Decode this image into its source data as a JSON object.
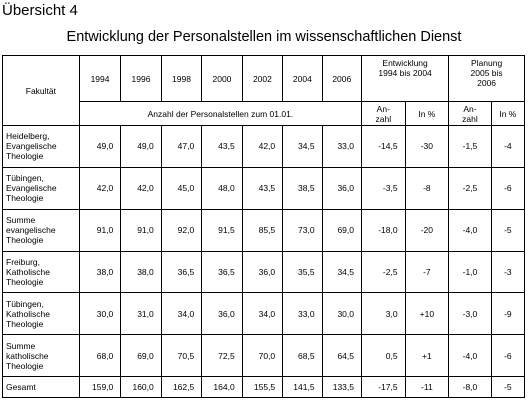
{
  "document": {
    "label": "Übersicht 4",
    "title": "Entwicklung der Personalstellen im wissenschaftlichen Dienst"
  },
  "table": {
    "headers": {
      "faculty": "Fakultät",
      "years": [
        "1994",
        "1996",
        "1998",
        "2000",
        "2002",
        "2004",
        "2006"
      ],
      "development": "Entwicklung\n1994 bis 2004",
      "planning": "Planung\n2005 bis\n2006",
      "subheader": "Anzahl der Personalstellen zum 01.01.",
      "dev_count": "An-\nzahl",
      "dev_percent": "In %",
      "plan_count": "An-\nzahl",
      "plan_percent": "In %"
    },
    "rows": [
      {
        "faculty": "Heidelberg,\nEvangelische\nTheologie",
        "values": [
          "49,0",
          "49,0",
          "47,0",
          "43,5",
          "42,0",
          "34,5",
          "33,0"
        ],
        "dev_count": "-14,5",
        "dev_percent": "-30",
        "plan_count": "-1,5",
        "plan_percent": "-4"
      },
      {
        "faculty": "Tübingen,\nEvangelische\nTheologie",
        "values": [
          "42,0",
          "42,0",
          "45,0",
          "48,0",
          "43,5",
          "38,5",
          "36,0"
        ],
        "dev_count": "-3,5",
        "dev_percent": "-8",
        "plan_count": "-2,5",
        "plan_percent": "-6"
      },
      {
        "faculty": "Summe\nevangelische\nTheologie",
        "values": [
          "91,0",
          "91,0",
          "92,0",
          "91,5",
          "85,5",
          "73,0",
          "69,0"
        ],
        "dev_count": "-18,0",
        "dev_percent": "-20",
        "plan_count": "-4,0",
        "plan_percent": "-5"
      },
      {
        "faculty": "Freiburg,\nKatholische\nTheologie",
        "values": [
          "38,0",
          "38,0",
          "36,5",
          "36,5",
          "36,0",
          "35,5",
          "34,5"
        ],
        "dev_count": "-2,5",
        "dev_percent": "-7",
        "plan_count": "-1,0",
        "plan_percent": "-3"
      },
      {
        "faculty": "Tübingen,\nKatholische\nTheologie",
        "values": [
          "30,0",
          "31,0",
          "34,0",
          "36,0",
          "34,0",
          "33,0",
          "30,0"
        ],
        "dev_count": "3,0",
        "dev_percent": "+10",
        "plan_count": "-3,0",
        "plan_percent": "-9"
      },
      {
        "faculty": "Summe\nkatholische\nTheologie",
        "values": [
          "68,0",
          "69,0",
          "70,5",
          "72,5",
          "70,0",
          "68,5",
          "64,5"
        ],
        "dev_count": "0,5",
        "dev_percent": "+1",
        "plan_count": "-4,0",
        "plan_percent": "-6"
      },
      {
        "faculty": "Gesamt",
        "values": [
          "159,0",
          "160,0",
          "162,5",
          "164,0",
          "155,5",
          "141,5",
          "133,5"
        ],
        "dev_count": "-17,5",
        "dev_percent": "-11",
        "plan_count": "-8,0",
        "plan_percent": "-5"
      }
    ]
  }
}
